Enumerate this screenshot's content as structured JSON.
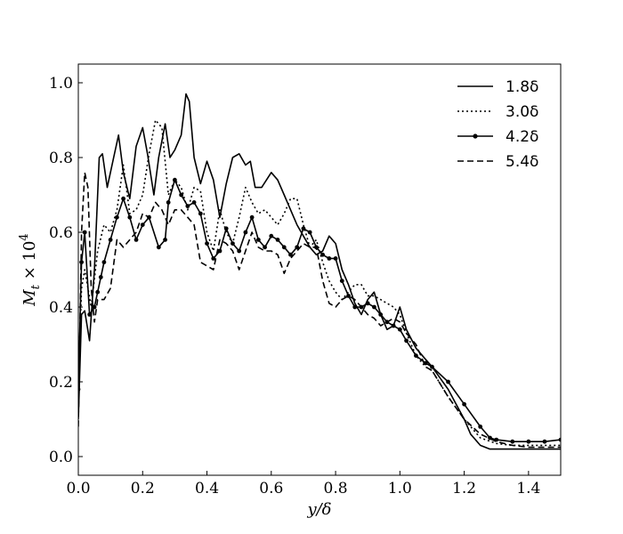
{
  "chart_data": {
    "type": "line",
    "xlabel": "y/δ",
    "ylabel": "M_t × 10^4",
    "xlim": [
      0.0,
      1.5
    ],
    "ylim": [
      -0.05,
      1.05
    ],
    "xticks": [
      "0.0",
      "0.2",
      "0.4",
      "0.6",
      "0.8",
      "1.0",
      "1.2",
      "1.4"
    ],
    "yticks": [
      "0.0",
      "0.2",
      "0.4",
      "0.6",
      "0.8",
      "1.0"
    ],
    "grid": false,
    "legend_position": "top-right",
    "series": [
      {
        "name": "1.8δ",
        "style": "solid",
        "x": [
          0.0,
          0.01,
          0.02,
          0.035,
          0.05,
          0.065,
          0.075,
          0.09,
          0.11,
          0.125,
          0.14,
          0.16,
          0.18,
          0.2,
          0.215,
          0.235,
          0.25,
          0.27,
          0.285,
          0.3,
          0.32,
          0.335,
          0.345,
          0.36,
          0.38,
          0.4,
          0.42,
          0.44,
          0.46,
          0.48,
          0.5,
          0.52,
          0.535,
          0.55,
          0.57,
          0.6,
          0.62,
          0.64,
          0.66,
          0.68,
          0.7,
          0.72,
          0.74,
          0.76,
          0.78,
          0.8,
          0.82,
          0.84,
          0.86,
          0.88,
          0.9,
          0.92,
          0.94,
          0.96,
          0.98,
          1.0,
          1.02,
          1.05,
          1.08,
          1.1,
          1.15,
          1.2,
          1.22,
          1.25,
          1.28,
          1.32,
          1.4,
          1.5
        ],
        "values": [
          0.1,
          0.38,
          0.39,
          0.31,
          0.5,
          0.8,
          0.81,
          0.72,
          0.8,
          0.86,
          0.76,
          0.69,
          0.83,
          0.88,
          0.81,
          0.7,
          0.8,
          0.89,
          0.8,
          0.82,
          0.86,
          0.97,
          0.95,
          0.8,
          0.73,
          0.79,
          0.74,
          0.64,
          0.73,
          0.8,
          0.81,
          0.78,
          0.79,
          0.72,
          0.72,
          0.76,
          0.74,
          0.7,
          0.66,
          0.62,
          0.59,
          0.56,
          0.54,
          0.55,
          0.59,
          0.57,
          0.5,
          0.46,
          0.41,
          0.38,
          0.42,
          0.44,
          0.38,
          0.34,
          0.35,
          0.4,
          0.34,
          0.29,
          0.26,
          0.24,
          0.18,
          0.1,
          0.06,
          0.03,
          0.02,
          0.02,
          0.02,
          0.02
        ]
      },
      {
        "name": "3.0δ",
        "style": "dotted",
        "x": [
          0.0,
          0.01,
          0.02,
          0.04,
          0.06,
          0.08,
          0.1,
          0.12,
          0.14,
          0.16,
          0.18,
          0.2,
          0.22,
          0.24,
          0.26,
          0.28,
          0.3,
          0.32,
          0.34,
          0.36,
          0.38,
          0.4,
          0.42,
          0.44,
          0.46,
          0.48,
          0.5,
          0.52,
          0.54,
          0.56,
          0.58,
          0.6,
          0.62,
          0.64,
          0.66,
          0.68,
          0.7,
          0.72,
          0.74,
          0.76,
          0.78,
          0.8,
          0.82,
          0.84,
          0.86,
          0.88,
          0.9,
          0.92,
          0.94,
          0.96,
          0.98,
          1.0,
          1.02,
          1.05,
          1.08,
          1.1,
          1.15,
          1.2,
          1.25,
          1.3,
          1.35,
          1.4,
          1.5
        ],
        "values": [
          0.2,
          0.45,
          0.5,
          0.4,
          0.55,
          0.62,
          0.6,
          0.66,
          0.78,
          0.65,
          0.66,
          0.7,
          0.81,
          0.9,
          0.88,
          0.7,
          0.74,
          0.72,
          0.66,
          0.72,
          0.71,
          0.6,
          0.55,
          0.66,
          0.6,
          0.57,
          0.64,
          0.72,
          0.68,
          0.65,
          0.66,
          0.64,
          0.62,
          0.65,
          0.69,
          0.69,
          0.62,
          0.56,
          0.58,
          0.52,
          0.47,
          0.44,
          0.42,
          0.44,
          0.46,
          0.46,
          0.43,
          0.43,
          0.42,
          0.41,
          0.4,
          0.38,
          0.33,
          0.27,
          0.24,
          0.23,
          0.16,
          0.1,
          0.05,
          0.035,
          0.03,
          0.03,
          0.03
        ]
      },
      {
        "name": "4.2δ",
        "style": "solid-dot",
        "x": [
          0.0,
          0.01,
          0.02,
          0.035,
          0.05,
          0.06,
          0.07,
          0.08,
          0.1,
          0.12,
          0.14,
          0.16,
          0.18,
          0.2,
          0.22,
          0.25,
          0.27,
          0.28,
          0.3,
          0.32,
          0.34,
          0.36,
          0.38,
          0.4,
          0.42,
          0.44,
          0.46,
          0.48,
          0.5,
          0.52,
          0.54,
          0.56,
          0.58,
          0.6,
          0.62,
          0.64,
          0.66,
          0.68,
          0.7,
          0.72,
          0.74,
          0.76,
          0.78,
          0.8,
          0.82,
          0.84,
          0.86,
          0.88,
          0.9,
          0.92,
          0.94,
          0.96,
          0.98,
          1.0,
          1.02,
          1.05,
          1.08,
          1.1,
          1.15,
          1.2,
          1.25,
          1.28,
          1.3,
          1.35,
          1.4,
          1.45,
          1.5
        ],
        "values": [
          0.18,
          0.52,
          0.6,
          0.38,
          0.4,
          0.44,
          0.48,
          0.52,
          0.58,
          0.64,
          0.69,
          0.64,
          0.58,
          0.62,
          0.64,
          0.56,
          0.58,
          0.68,
          0.74,
          0.7,
          0.67,
          0.68,
          0.65,
          0.57,
          0.53,
          0.55,
          0.61,
          0.57,
          0.55,
          0.6,
          0.64,
          0.58,
          0.56,
          0.59,
          0.58,
          0.56,
          0.54,
          0.56,
          0.61,
          0.6,
          0.56,
          0.54,
          0.53,
          0.53,
          0.47,
          0.43,
          0.4,
          0.4,
          0.41,
          0.4,
          0.38,
          0.36,
          0.35,
          0.34,
          0.31,
          0.27,
          0.25,
          0.24,
          0.2,
          0.14,
          0.08,
          0.05,
          0.045,
          0.04,
          0.04,
          0.04,
          0.045
        ]
      },
      {
        "name": "5.4δ",
        "style": "dashed",
        "x": [
          0.0,
          0.01,
          0.02,
          0.03,
          0.04,
          0.05,
          0.06,
          0.08,
          0.1,
          0.12,
          0.14,
          0.16,
          0.18,
          0.2,
          0.22,
          0.24,
          0.26,
          0.28,
          0.3,
          0.32,
          0.34,
          0.36,
          0.38,
          0.4,
          0.42,
          0.44,
          0.46,
          0.48,
          0.5,
          0.52,
          0.54,
          0.56,
          0.58,
          0.6,
          0.62,
          0.64,
          0.66,
          0.68,
          0.7,
          0.72,
          0.74,
          0.76,
          0.78,
          0.8,
          0.82,
          0.84,
          0.86,
          0.88,
          0.9,
          0.92,
          0.94,
          0.96,
          0.98,
          1.0,
          1.02,
          1.05,
          1.08,
          1.1,
          1.15,
          1.2,
          1.25,
          1.3,
          1.35,
          1.4,
          1.5
        ],
        "values": [
          0.08,
          0.6,
          0.76,
          0.72,
          0.45,
          0.36,
          0.42,
          0.42,
          0.45,
          0.58,
          0.56,
          0.58,
          0.6,
          0.65,
          0.64,
          0.68,
          0.66,
          0.62,
          0.66,
          0.66,
          0.64,
          0.62,
          0.52,
          0.51,
          0.5,
          0.58,
          0.57,
          0.55,
          0.5,
          0.55,
          0.6,
          0.56,
          0.55,
          0.55,
          0.54,
          0.49,
          0.53,
          0.55,
          0.57,
          0.56,
          0.56,
          0.47,
          0.41,
          0.4,
          0.42,
          0.43,
          0.42,
          0.4,
          0.38,
          0.37,
          0.35,
          0.36,
          0.37,
          0.36,
          0.33,
          0.3,
          0.24,
          0.23,
          0.16,
          0.1,
          0.06,
          0.04,
          0.03,
          0.025,
          0.025
        ]
      }
    ]
  }
}
